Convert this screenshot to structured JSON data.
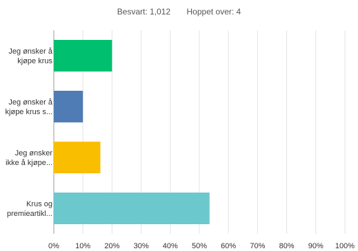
{
  "summary": {
    "answered": "Besvart: 1,012",
    "skipped": "Hoppet over: 4"
  },
  "chart_data": {
    "type": "bar",
    "orientation": "horizontal",
    "categories": [
      [
        "Jeg ønsker å",
        "kjøpe krus"
      ],
      [
        "Jeg ønsker å",
        "kjøpe krus s..."
      ],
      [
        "Jeg ønsker",
        "ikke å kjøpe..."
      ],
      [
        "Krus og",
        "premieartikl..."
      ]
    ],
    "values": [
      20,
      10,
      16,
      53.5
    ],
    "colors": [
      "#00bf6f",
      "#507cb6",
      "#f9be00",
      "#6bc8cd"
    ],
    "xlim": [
      0,
      100
    ],
    "ticks": [
      0,
      10,
      20,
      30,
      40,
      50,
      60,
      70,
      80,
      90,
      100
    ],
    "tick_labels": [
      "0%",
      "10%",
      "20%",
      "30%",
      "40%",
      "50%",
      "60%",
      "70%",
      "80%",
      "90%",
      "100%"
    ],
    "grid": true
  }
}
